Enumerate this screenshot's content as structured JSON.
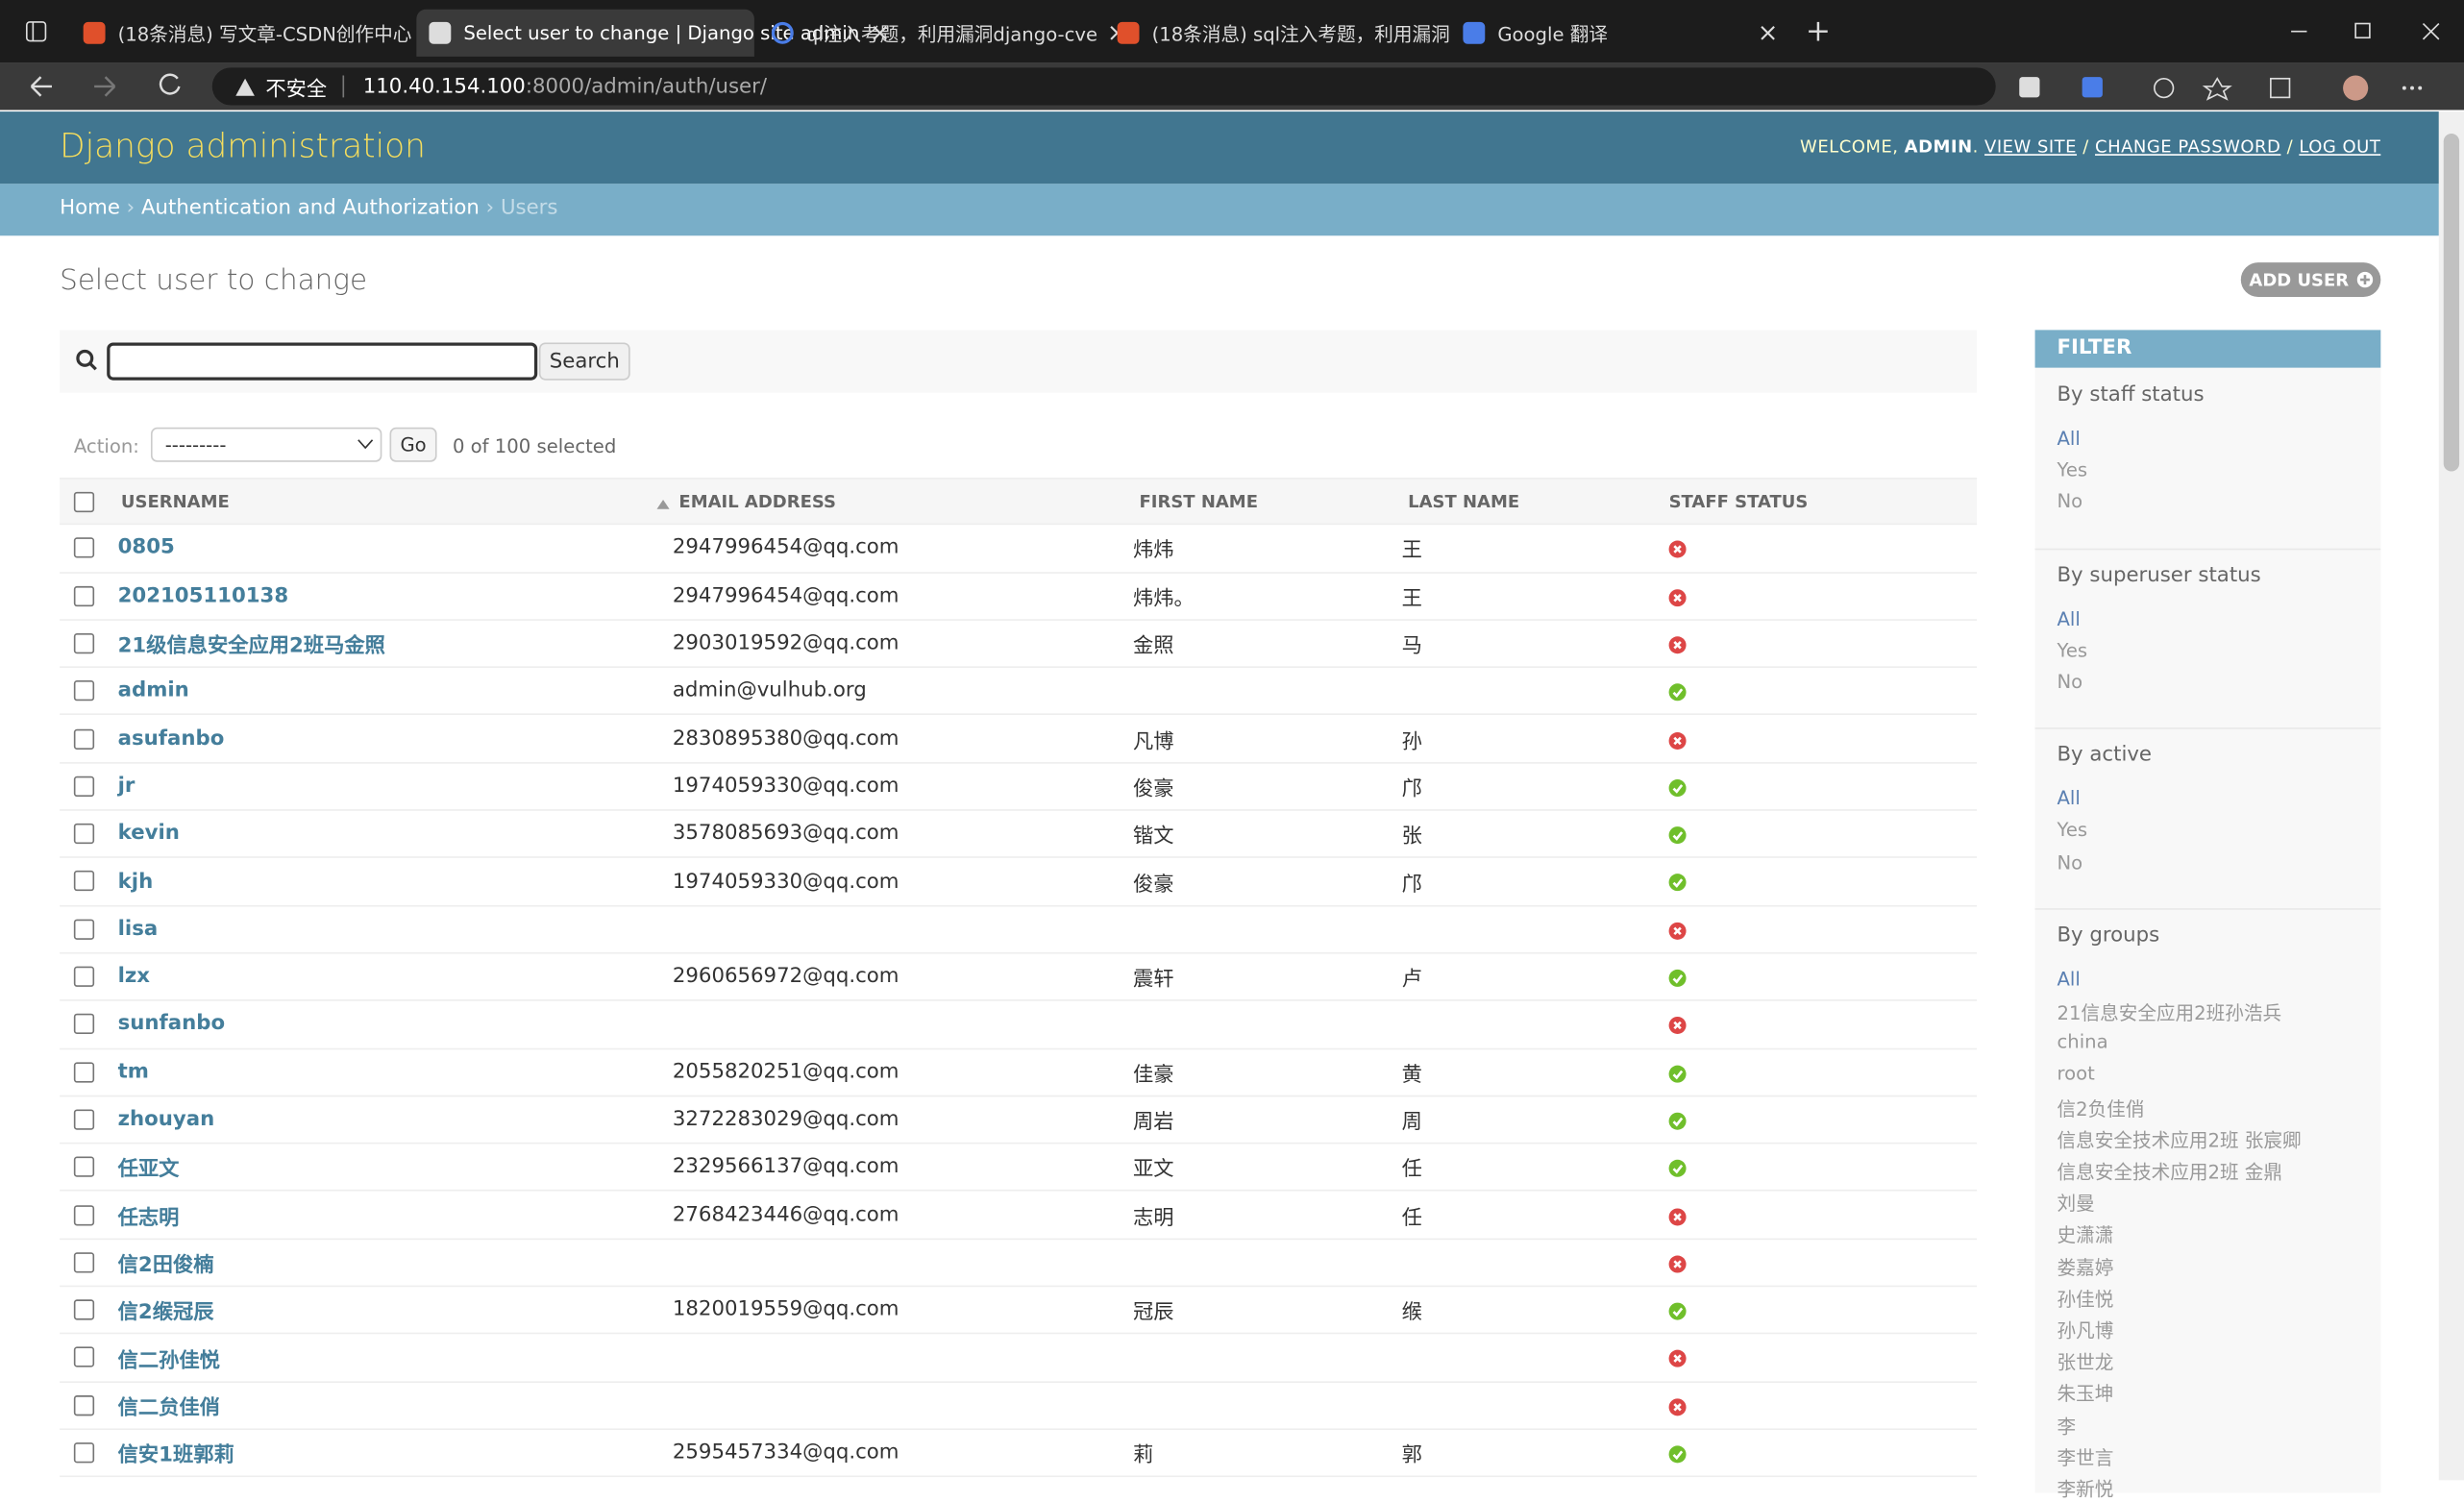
{
  "browser": {
    "tabs": [
      "(18条消息) 写文章-CSDN创作中心",
      "Select user to change | Django site admin",
      "ql注入考题，利用漏洞django-cve",
      "(18条消息) sql注入考题，利用漏洞",
      "Google 翻译"
    ],
    "active_tab": 1,
    "security": "不安全",
    "url_host": "110.40.154.100",
    "url_path": ":8000/admin/auth/user/"
  },
  "header": {
    "site_name": "Django administration",
    "welcome": "WELCOME,",
    "user": "ADMIN",
    "punctuation": ".",
    "links": [
      "VIEW SITE",
      "CHANGE PASSWORD",
      "LOG OUT"
    ],
    "separator": "/"
  },
  "breadcrumbs": {
    "items": [
      "Home",
      "Authentication and Authorization",
      "Users"
    ],
    "separator": "›"
  },
  "content": {
    "title": "Select user to change",
    "add_button": "ADD USER",
    "search_button": "Search",
    "action_label": "Action:",
    "action_select": "---------",
    "go_button": "Go",
    "selected": "0 of 100 selected",
    "columns": [
      "USERNAME",
      "EMAIL ADDRESS",
      "FIRST NAME",
      "LAST NAME",
      "STAFF STATUS"
    ],
    "rows": [
      [
        "0805",
        "2947996454@qq.com",
        "炜炜",
        "王",
        false
      ],
      [
        "202105110138",
        "2947996454@qq.com",
        "炜炜。",
        "王",
        false
      ],
      [
        "21级信息安全应用2班马金照",
        "2903019592@qq.com",
        "金照",
        "马",
        false
      ],
      [
        "admin",
        "admin@vulhub.org",
        null,
        null,
        true
      ],
      [
        "asufanbo",
        "2830895380@qq.com",
        "凡博",
        "孙",
        false
      ],
      [
        "jr",
        "1974059330@qq.com",
        "俊豪",
        "邝",
        true
      ],
      [
        "kevin",
        "3578085693@qq.com",
        "锴文",
        "张",
        true
      ],
      [
        "kjh",
        "1974059330@qq.com",
        "俊豪",
        "邝",
        true
      ],
      [
        "lisa",
        null,
        null,
        null,
        false
      ],
      [
        "lzx",
        "2960656972@qq.com",
        "震轩",
        "卢",
        true
      ],
      [
        "sunfanbo",
        null,
        null,
        null,
        false
      ],
      [
        "tm",
        "2055820251@qq.com",
        "佳豪",
        "黄",
        true
      ],
      [
        "zhouyan",
        "3272283029@qq.com",
        "周岩",
        "周",
        true
      ],
      [
        "任亚文",
        "2329566137@qq.com",
        "亚文",
        "任",
        true
      ],
      [
        "任志明",
        "2768423446@qq.com",
        "志明",
        "任",
        false
      ],
      [
        "信2田俊楠",
        null,
        null,
        null,
        false
      ],
      [
        "信2缑冠辰",
        "1820019559@qq.com",
        "冠辰",
        "缑",
        true
      ],
      [
        "信二孙佳悦",
        null,
        null,
        null,
        false
      ],
      [
        "信二贠佳俏",
        null,
        null,
        null,
        false
      ],
      [
        "信安1班郭莉",
        "2595457334@qq.com",
        "莉",
        "郭",
        true
      ]
    ]
  },
  "filter": {
    "title": "FILTER",
    "groups": [
      {
        "title": "By staff status",
        "options": [
          "All",
          "Yes",
          "No"
        ]
      },
      {
        "title": "By superuser status",
        "options": [
          "All",
          "Yes",
          "No"
        ]
      },
      {
        "title": "By active",
        "options": [
          "All",
          "Yes",
          "No"
        ]
      },
      {
        "title": "By groups",
        "options": [
          "All",
          "21信息安全应用2班孙浩兵",
          "china",
          "root",
          "信2负佳俏",
          "信息安全技术应用2班 张宸卿",
          "信息安全技术应用2班 金鼎",
          "刘曼",
          "史潇潇",
          "娄嘉婷",
          "孙佳悦",
          "孙凡博",
          "张世龙",
          "朱玉坤",
          "李",
          "李世言",
          "李新悦"
        ]
      }
    ]
  }
}
